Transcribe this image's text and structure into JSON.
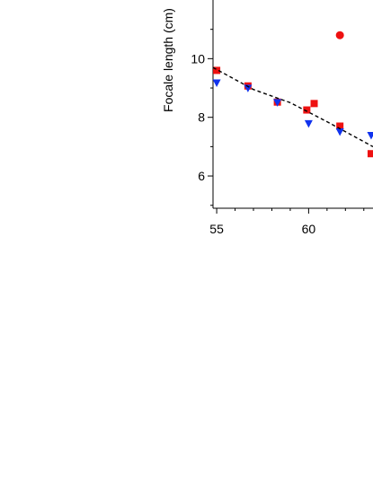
{
  "chart_data": {
    "type": "scatter",
    "title": "",
    "xlabel": "",
    "ylabel": "Focale length (cm)",
    "xlim": [
      54.8,
      63.5
    ],
    "ylim": [
      4.9,
      12.0
    ],
    "x_ticks": [
      55,
      60
    ],
    "x_tick_labels": [
      "55",
      "60"
    ],
    "y_ticks": [
      6,
      8,
      10
    ],
    "y_tick_labels": [
      "6",
      "8",
      "10"
    ],
    "grid": false,
    "legend": "none",
    "series": [
      {
        "marker": "square",
        "color": "#ee1111",
        "points": [
          [
            55.0,
            9.6
          ],
          [
            56.7,
            9.07
          ],
          [
            58.3,
            8.52
          ],
          [
            59.9,
            8.25
          ],
          [
            60.3,
            8.47
          ],
          [
            61.7,
            7.7
          ],
          [
            63.4,
            6.76
          ]
        ]
      },
      {
        "marker": "triangle-down",
        "color": "#1133ee",
        "points": [
          [
            55.0,
            9.17
          ],
          [
            56.7,
            8.99
          ],
          [
            58.3,
            8.5
          ],
          [
            60.0,
            7.78
          ],
          [
            61.7,
            7.5
          ],
          [
            63.4,
            7.38
          ]
        ]
      },
      {
        "marker": "circle",
        "color": "#ee1111",
        "points": [
          [
            61.7,
            10.8
          ]
        ]
      },
      {
        "marker": "dashed-line",
        "color": "#000000",
        "points": [
          [
            54.8,
            9.7
          ],
          [
            57.0,
            8.95
          ],
          [
            59.0,
            8.5
          ],
          [
            61.0,
            7.85
          ],
          [
            63.5,
            7.0
          ]
        ]
      }
    ]
  }
}
